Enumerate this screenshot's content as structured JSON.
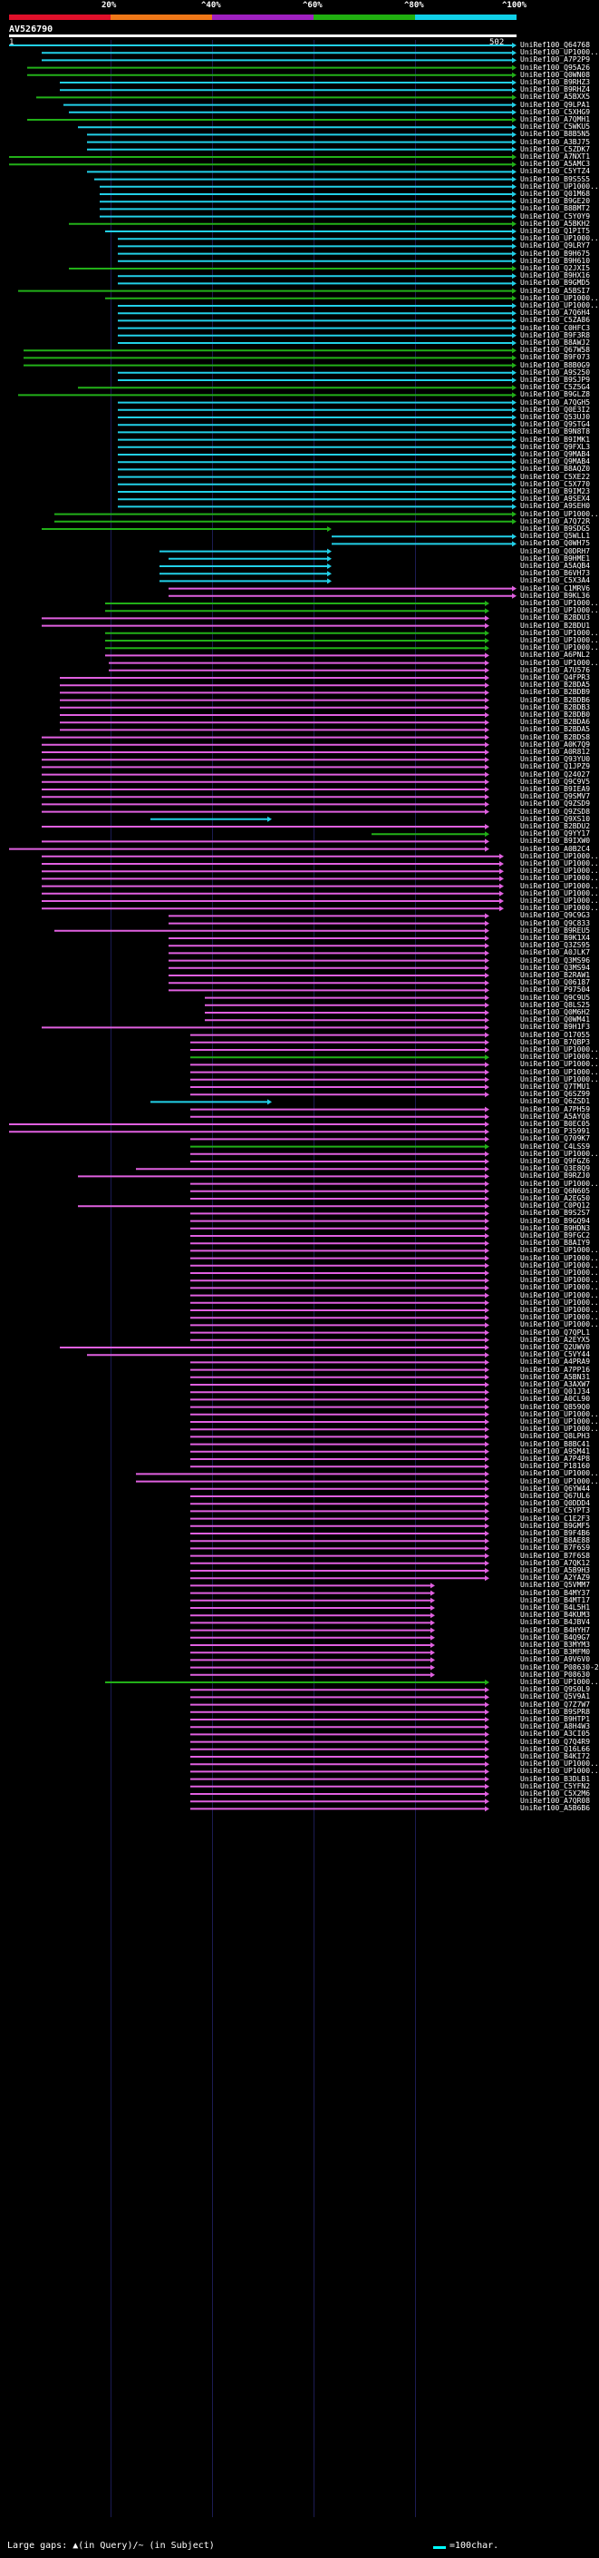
{
  "legend": {
    "ticks": [
      "20%",
      "^40%",
      "^60%",
      "^80%",
      "^100%"
    ],
    "colors": [
      "#e0102a",
      "#f07818",
      "#a020c0",
      "#20b010",
      "#10d0e8"
    ]
  },
  "query": {
    "id": "AV526790",
    "start": "1",
    "end": "502"
  },
  "footer": {
    "gaps": "Large gaps: ▲(in Query)/~ (in Subject)",
    "scale": "=100char."
  },
  "hit_colors": {
    "cyan": "#22d0e8",
    "green": "#22b018",
    "magenta": "#e060e0"
  },
  "hits": [
    [
      "UniRef100_Q64768",
      "cyan",
      10,
      570
    ],
    [
      "UniRef100_UP1000..",
      "cyan",
      46,
      570
    ],
    [
      "UniRef100_A7P2P9",
      "cyan",
      46,
      570
    ],
    [
      "UniRef100_Q95A26",
      "green",
      30,
      570
    ],
    [
      "UniRef100_Q0WN08",
      "green",
      30,
      570
    ],
    [
      "UniRef100_B9RHZ3",
      "cyan",
      66,
      570
    ],
    [
      "UniRef100_B9RHZ4",
      "cyan",
      66,
      570
    ],
    [
      "UniRef100_A5BXX5",
      "green",
      40,
      570
    ],
    [
      "UniRef100_Q9LPA1",
      "cyan",
      70,
      570
    ],
    [
      "UniRef100_C5XHG9",
      "cyan",
      76,
      570
    ],
    [
      "UniRef100_A7QMH1",
      "green",
      30,
      570
    ],
    [
      "UniRef100_C5WKU5",
      "cyan",
      86,
      570
    ],
    [
      "UniRef100_B8B5N5",
      "cyan",
      96,
      570
    ],
    [
      "UniRef100_A3BJ75",
      "cyan",
      96,
      570
    ],
    [
      "UniRef100_C5ZDK7",
      "cyan",
      96,
      570
    ],
    [
      "UniRef100_A7NXT1",
      "green",
      10,
      570
    ],
    [
      "UniRef100_A5AMC3",
      "green",
      10,
      570
    ],
    [
      "UniRef100_C5YTZ4",
      "cyan",
      96,
      570
    ],
    [
      "UniRef100_B9S5S5",
      "cyan",
      104,
      570
    ],
    [
      "UniRef100_UP1000..",
      "cyan",
      110,
      570
    ],
    [
      "UniRef100_Q01M68",
      "cyan",
      110,
      570
    ],
    [
      "UniRef100_B9GE20",
      "cyan",
      110,
      570
    ],
    [
      "UniRef100_B8BMT2",
      "cyan",
      110,
      570
    ],
    [
      "UniRef100_C5Y0Y9",
      "cyan",
      110,
      570
    ],
    [
      "UniRef100_A5BKH2",
      "green",
      76,
      570
    ],
    [
      "UniRef100_Q1PIT5",
      "cyan",
      116,
      570
    ],
    [
      "UniRef100_UP1000..",
      "cyan",
      130,
      570
    ],
    [
      "UniRef100_Q9LRY7",
      "cyan",
      130,
      570
    ],
    [
      "UniRef100_B9H675",
      "cyan",
      130,
      570
    ],
    [
      "UniRef100_B9H610",
      "cyan",
      130,
      570
    ],
    [
      "UniRef100_Q2JXI5",
      "green",
      76,
      570
    ],
    [
      "UniRef100_B9HX16",
      "cyan",
      130,
      570
    ],
    [
      "UniRef100_B9GMD5",
      "cyan",
      130,
      570
    ],
    [
      "UniRef100_A5BSI7",
      "green",
      20,
      570
    ],
    [
      "UniRef100_UP1000..",
      "green",
      116,
      570
    ],
    [
      "UniRef100_UP1000..",
      "cyan",
      130,
      570
    ],
    [
      "UniRef100_A7Q6H4",
      "cyan",
      130,
      570
    ],
    [
      "UniRef100_C5ZA86",
      "cyan",
      130,
      570
    ],
    [
      "UniRef100_C0HFC3",
      "cyan",
      130,
      570
    ],
    [
      "UniRef100_B9F3R8",
      "cyan",
      130,
      570
    ],
    [
      "UniRef100_B8AWJ2",
      "cyan",
      130,
      570
    ],
    [
      "UniRef100_Q67W58",
      "green",
      26,
      570
    ],
    [
      "UniRef100_B9F073",
      "green",
      26,
      570
    ],
    [
      "UniRef100_B8B0G9",
      "green",
      26,
      570
    ],
    [
      "UniRef100_A9S250",
      "cyan",
      130,
      570
    ],
    [
      "UniRef100_B9SJP9",
      "cyan",
      130,
      570
    ],
    [
      "UniRef100_C5Z5G4",
      "green",
      86,
      570
    ],
    [
      "UniRef100_B9GLZ8",
      "green",
      20,
      570
    ],
    [
      "UniRef100_A7QGH5",
      "cyan",
      130,
      570
    ],
    [
      "UniRef100_Q0E3I2",
      "cyan",
      130,
      570
    ],
    [
      "UniRef100_Q53UJ0",
      "cyan",
      130,
      570
    ],
    [
      "UniRef100_Q9STG4",
      "cyan",
      130,
      570
    ],
    [
      "UniRef100_B9N8T8",
      "cyan",
      130,
      570
    ],
    [
      "UniRef100_B9IMK1",
      "cyan",
      130,
      570
    ],
    [
      "UniRef100_Q9FXL3",
      "cyan",
      130,
      570
    ],
    [
      "UniRef100_Q9MAB4",
      "cyan",
      130,
      570
    ],
    [
      "UniRef100_Q9MAB4",
      "cyan",
      130,
      570
    ],
    [
      "UniRef100_B8AQZ0",
      "cyan",
      130,
      570
    ],
    [
      "UniRef100_C5XE22",
      "cyan",
      130,
      570
    ],
    [
      "UniRef100_C5X770",
      "cyan",
      130,
      570
    ],
    [
      "UniRef100_B9IM23",
      "cyan",
      130,
      570
    ],
    [
      "UniRef100_A9SEX4",
      "cyan",
      130,
      570
    ],
    [
      "UniRef100_A9SEH0",
      "cyan",
      130,
      570
    ],
    [
      "UniRef100_UP1000..",
      "green",
      60,
      570
    ],
    [
      "UniRef100_A7Q72R",
      "green",
      60,
      570
    ],
    [
      "UniRef100_B9SDG5",
      "green",
      46,
      366
    ],
    [
      "UniRef100_Q5WLL1",
      "cyan",
      366,
      570
    ],
    [
      "UniRef100_Q0WH75",
      "cyan",
      366,
      570
    ],
    [
      "UniRef100_Q0DRH7",
      "cyan",
      176,
      366
    ],
    [
      "UniRef100_B9HME1",
      "cyan",
      186,
      366
    ],
    [
      "UniRef100_A5AQB4",
      "cyan",
      176,
      366
    ],
    [
      "UniRef100_B6VH73",
      "cyan",
      176,
      366
    ],
    [
      "UniRef100_C5X3A4",
      "cyan",
      176,
      366
    ],
    [
      "UniRef100_C1MRV6",
      "magenta",
      186,
      570
    ],
    [
      "UniRef100_B9KL36",
      "magenta",
      186,
      570
    ],
    [
      "UniRef100_UP1000..",
      "green",
      116,
      540
    ],
    [
      "UniRef100_UP1000..",
      "green",
      116,
      540
    ],
    [
      "UniRef100_B2BDU3",
      "magenta",
      46,
      540
    ],
    [
      "UniRef100_B2BDU1",
      "magenta",
      46,
      540
    ],
    [
      "UniRef100_UP1000..",
      "green",
      116,
      540
    ],
    [
      "UniRef100_UP1000..",
      "green",
      116,
      540
    ],
    [
      "UniRef100_UP1000..",
      "green",
      116,
      540
    ],
    [
      "UniRef100_A6PNL2",
      "magenta",
      116,
      540
    ],
    [
      "UniRef100_UP1000..",
      "magenta",
      120,
      540
    ],
    [
      "UniRef100_A7U576",
      "magenta",
      120,
      540
    ],
    [
      "UniRef100_Q4FPR3",
      "magenta",
      66,
      540
    ],
    [
      "UniRef100_B2BDA5",
      "magenta",
      66,
      540
    ],
    [
      "UniRef100_B2BDB9",
      "magenta",
      66,
      540
    ],
    [
      "UniRef100_B2BDB6",
      "magenta",
      66,
      540
    ],
    [
      "UniRef100_B2BDB3",
      "magenta",
      66,
      540
    ],
    [
      "UniRef100_B2BDB0",
      "magenta",
      66,
      540
    ],
    [
      "UniRef100_B2BDA6",
      "magenta",
      66,
      540
    ],
    [
      "UniRef100_B2BDA5",
      "magenta",
      66,
      540
    ],
    [
      "UniRef100_B2BDS8",
      "magenta",
      46,
      540
    ],
    [
      "UniRef100_A0K7Q9",
      "magenta",
      46,
      540
    ],
    [
      "UniRef100_A0R812",
      "magenta",
      46,
      540
    ],
    [
      "UniRef100_Q93YU0",
      "magenta",
      46,
      540
    ],
    [
      "UniRef100_Q1JPZ9",
      "magenta",
      46,
      540
    ],
    [
      "UniRef100_Q24027",
      "magenta",
      46,
      540
    ],
    [
      "UniRef100_Q9C9V5",
      "magenta",
      46,
      540
    ],
    [
      "UniRef100_B9IEA9",
      "magenta",
      46,
      540
    ],
    [
      "UniRef100_Q9SMV7",
      "magenta",
      46,
      540
    ],
    [
      "UniRef100_Q9ZSD9",
      "magenta",
      46,
      540
    ],
    [
      "UniRef100_Q9ZSD8",
      "magenta",
      46,
      540
    ],
    [
      "UniRef100_Q9XS10",
      "cyan",
      166,
      300
    ],
    [
      "UniRef100_B2BDU2",
      "magenta",
      46,
      540
    ],
    [
      "UniRef100_Q9YY17",
      "green",
      410,
      540
    ],
    [
      "UniRef100_B9IXW0",
      "magenta",
      46,
      540
    ],
    [
      "UniRef100_A0B2C4",
      "magenta",
      10,
      540
    ],
    [
      "UniRef100_UP1000..",
      "magenta",
      46,
      556
    ],
    [
      "UniRef100_UP1000..",
      "magenta",
      46,
      556
    ],
    [
      "UniRef100_UP1000..",
      "magenta",
      46,
      556
    ],
    [
      "UniRef100_UP1000..",
      "magenta",
      46,
      556
    ],
    [
      "UniRef100_UP1000..",
      "magenta",
      46,
      556
    ],
    [
      "UniRef100_UP1000..",
      "magenta",
      46,
      556
    ],
    [
      "UniRef100_UP1000..",
      "magenta",
      46,
      556
    ],
    [
      "UniRef100_UP1000..",
      "magenta",
      46,
      556
    ],
    [
      "UniRef100_Q9C9G3",
      "magenta",
      186,
      540
    ],
    [
      "UniRef100_Q9C833",
      "magenta",
      186,
      540
    ],
    [
      "UniRef100_B9REU5",
      "magenta",
      60,
      540
    ],
    [
      "UniRef100_B9K1X4",
      "magenta",
      186,
      540
    ],
    [
      "UniRef100_Q3ZS95",
      "magenta",
      186,
      540
    ],
    [
      "UniRef100_A0JLK7",
      "magenta",
      186,
      540
    ],
    [
      "UniRef100_Q3MS96",
      "magenta",
      186,
      540
    ],
    [
      "UniRef100_Q3MS94",
      "magenta",
      186,
      540
    ],
    [
      "UniRef100_B2RAW1",
      "magenta",
      186,
      540
    ],
    [
      "UniRef100_Q06187",
      "magenta",
      186,
      540
    ],
    [
      "UniRef100_P97504",
      "magenta",
      186,
      540
    ],
    [
      "UniRef100_Q9C9U5",
      "magenta",
      226,
      540
    ],
    [
      "UniRef100_Q8LS25",
      "magenta",
      226,
      540
    ],
    [
      "UniRef100_Q0M6H2",
      "magenta",
      226,
      540
    ],
    [
      "UniRef100_Q0WM41",
      "magenta",
      226,
      540
    ],
    [
      "UniRef100_B9H1F3",
      "magenta",
      46,
      540
    ],
    [
      "UniRef100_O17055",
      "magenta",
      210,
      540
    ],
    [
      "UniRef100_B7QBP3",
      "magenta",
      210,
      540
    ],
    [
      "UniRef100_UP1000..",
      "magenta",
      210,
      540
    ],
    [
      "UniRef100_UP1000..",
      "green",
      210,
      540
    ],
    [
      "UniRef100_UP1000..",
      "magenta",
      210,
      540
    ],
    [
      "UniRef100_UP1000..",
      "magenta",
      210,
      540
    ],
    [
      "UniRef100_UP1000..",
      "magenta",
      210,
      540
    ],
    [
      "UniRef100_Q7TMU1",
      "magenta",
      210,
      540
    ],
    [
      "UniRef100_Q6SZ99",
      "magenta",
      210,
      540
    ],
    [
      "UniRef100_Q6ZSD1",
      "cyan",
      166,
      300
    ],
    [
      "UniRef100_A7PH59",
      "magenta",
      210,
      540
    ],
    [
      "UniRef100_A5AYQ8",
      "magenta",
      210,
      540
    ],
    [
      "UniRef100_B0EC05",
      "magenta",
      10,
      540
    ],
    [
      "UniRef100_P35991",
      "magenta",
      10,
      540
    ],
    [
      "UniRef100_Q709K7",
      "magenta",
      210,
      540
    ],
    [
      "UniRef100_C4LSS9",
      "green",
      210,
      540
    ],
    [
      "UniRef100_UP1000..",
      "magenta",
      210,
      540
    ],
    [
      "UniRef100_Q9FGZ6",
      "magenta",
      210,
      540
    ],
    [
      "UniRef100_Q3E8Q9",
      "magenta",
      150,
      540
    ],
    [
      "UniRef100_B9RZJ0",
      "magenta",
      86,
      540
    ],
    [
      "UniRef100_UP1000..",
      "magenta",
      210,
      540
    ],
    [
      "UniRef100_Q6N605",
      "magenta",
      210,
      540
    ],
    [
      "UniRef100_A2EG50",
      "magenta",
      210,
      540
    ],
    [
      "UniRef100_C0PQ12",
      "magenta",
      86,
      540
    ],
    [
      "UniRef100_B9S2S7",
      "magenta",
      210,
      540
    ],
    [
      "UniRef100_B9GQ94",
      "magenta",
      210,
      540
    ],
    [
      "UniRef100_B9HDN3",
      "magenta",
      210,
      540
    ],
    [
      "UniRef100_B9FGC2",
      "magenta",
      210,
      540
    ],
    [
      "UniRef100_B8AIY9",
      "magenta",
      210,
      540
    ],
    [
      "UniRef100_UP1000..",
      "magenta",
      210,
      540
    ],
    [
      "UniRef100_UP1000..",
      "magenta",
      210,
      540
    ],
    [
      "UniRef100_UP1000..",
      "magenta",
      210,
      540
    ],
    [
      "UniRef100_UP1000..",
      "magenta",
      210,
      540
    ],
    [
      "UniRef100_UP1000..",
      "magenta",
      210,
      540
    ],
    [
      "UniRef100_UP1000..",
      "magenta",
      210,
      540
    ],
    [
      "UniRef100_UP1000..",
      "magenta",
      210,
      540
    ],
    [
      "UniRef100_UP1000..",
      "magenta",
      210,
      540
    ],
    [
      "UniRef100_UP1000..",
      "magenta",
      210,
      540
    ],
    [
      "UniRef100_UP1000..",
      "magenta",
      210,
      540
    ],
    [
      "UniRef100_UP1000..",
      "magenta",
      210,
      540
    ],
    [
      "UniRef100_Q7QPL1",
      "magenta",
      210,
      540
    ],
    [
      "UniRef100_A2EYX5",
      "magenta",
      210,
      540
    ],
    [
      "UniRef100_Q2UWV0",
      "magenta",
      66,
      540
    ],
    [
      "UniRef100_C5VY44",
      "magenta",
      96,
      540
    ],
    [
      "UniRef100_A4PRA9",
      "magenta",
      210,
      540
    ],
    [
      "UniRef100_A7PP16",
      "magenta",
      210,
      540
    ],
    [
      "UniRef100_A5BN31",
      "magenta",
      210,
      540
    ],
    [
      "UniRef100_A3AXW7",
      "magenta",
      210,
      540
    ],
    [
      "UniRef100_Q01J34",
      "magenta",
      210,
      540
    ],
    [
      "UniRef100_A0CL90",
      "magenta",
      210,
      540
    ],
    [
      "UniRef100_Q859Q0",
      "magenta",
      210,
      540
    ],
    [
      "UniRef100_UP1000..",
      "magenta",
      210,
      540
    ],
    [
      "UniRef100_UP1000..",
      "magenta",
      210,
      540
    ],
    [
      "UniRef100_UP1000..",
      "magenta",
      210,
      540
    ],
    [
      "UniRef100_Q8LPH3",
      "magenta",
      210,
      540
    ],
    [
      "UniRef100_B8BC41",
      "magenta",
      210,
      540
    ],
    [
      "UniRef100_A9SM41",
      "magenta",
      210,
      540
    ],
    [
      "UniRef100_A7P4P8",
      "magenta",
      210,
      540
    ],
    [
      "UniRef100_P18160",
      "magenta",
      210,
      540
    ],
    [
      "UniRef100_UP1000..",
      "magenta",
      150,
      540
    ],
    [
      "UniRef100_UP1000..",
      "magenta",
      150,
      540
    ],
    [
      "UniRef100_Q6YW44",
      "magenta",
      210,
      540
    ],
    [
      "UniRef100_Q67UL6",
      "magenta",
      210,
      540
    ],
    [
      "UniRef100_Q0DDD4",
      "magenta",
      210,
      540
    ],
    [
      "UniRef100_C5YPT3",
      "magenta",
      210,
      540
    ],
    [
      "UniRef100_C1E2F3",
      "magenta",
      210,
      540
    ],
    [
      "UniRef100_B9GMF5",
      "magenta",
      210,
      540
    ],
    [
      "UniRef100_B9F4B6",
      "magenta",
      210,
      540
    ],
    [
      "UniRef100_B8AE88",
      "magenta",
      210,
      540
    ],
    [
      "UniRef100_B7F6S9",
      "magenta",
      210,
      540
    ],
    [
      "UniRef100_B7F6S8",
      "magenta",
      210,
      540
    ],
    [
      "UniRef100_A7QK12",
      "magenta",
      210,
      540
    ],
    [
      "UniRef100_A5B9H3",
      "magenta",
      210,
      540
    ],
    [
      "UniRef100_A2YAZ9",
      "magenta",
      210,
      540
    ],
    [
      "UniRef100_Q5VMM7",
      "magenta",
      210,
      480
    ],
    [
      "UniRef100_B4MY37",
      "magenta",
      210,
      480
    ],
    [
      "UniRef100_B4MT17",
      "magenta",
      210,
      480
    ],
    [
      "UniRef100_B4L5H1",
      "magenta",
      210,
      480
    ],
    [
      "UniRef100_B4KUM3",
      "magenta",
      210,
      480
    ],
    [
      "UniRef100_B4JBV4",
      "magenta",
      210,
      480
    ],
    [
      "UniRef100_B4HYH7",
      "magenta",
      210,
      480
    ],
    [
      "UniRef100_B4Q9G7",
      "magenta",
      210,
      480
    ],
    [
      "UniRef100_B3MYM3",
      "magenta",
      210,
      480
    ],
    [
      "UniRef100_B3MFM0",
      "magenta",
      210,
      480
    ],
    [
      "UniRef100_A9V6V0",
      "magenta",
      210,
      480
    ],
    [
      "UniRef100_P08630-2",
      "magenta",
      210,
      480
    ],
    [
      "UniRef100_P08630",
      "magenta",
      210,
      480
    ],
    [
      "UniRef100_UP1000..",
      "green",
      116,
      540
    ],
    [
      "UniRef100_Q9S0L9",
      "magenta",
      210,
      540
    ],
    [
      "UniRef100_Q5V9A1",
      "magenta",
      210,
      540
    ],
    [
      "UniRef100_Q7Z7W7",
      "magenta",
      210,
      540
    ],
    [
      "UniRef100_B9SPR8",
      "magenta",
      210,
      540
    ],
    [
      "UniRef100_B9HTP1",
      "magenta",
      210,
      540
    ],
    [
      "UniRef100_A8H4W3",
      "magenta",
      210,
      540
    ],
    [
      "UniRef100_A3CI05",
      "magenta",
      210,
      540
    ],
    [
      "UniRef100_Q7Q4R9",
      "magenta",
      210,
      540
    ],
    [
      "UniRef100_Q16L66",
      "magenta",
      210,
      540
    ],
    [
      "UniRef100_B4KI72",
      "magenta",
      210,
      540
    ],
    [
      "UniRef100_UP1000..",
      "magenta",
      210,
      540
    ],
    [
      "UniRef100_UP1000..",
      "magenta",
      210,
      540
    ],
    [
      "UniRef100_B3DLB1",
      "magenta",
      210,
      540
    ],
    [
      "UniRef100_C5YFN2",
      "magenta",
      210,
      540
    ],
    [
      "UniRef100_C5X2M6",
      "magenta",
      210,
      540
    ],
    [
      "UniRef100_A7QR08",
      "magenta",
      210,
      540
    ],
    [
      "UniRef100_A5B6B6",
      "magenta",
      210,
      540
    ]
  ]
}
